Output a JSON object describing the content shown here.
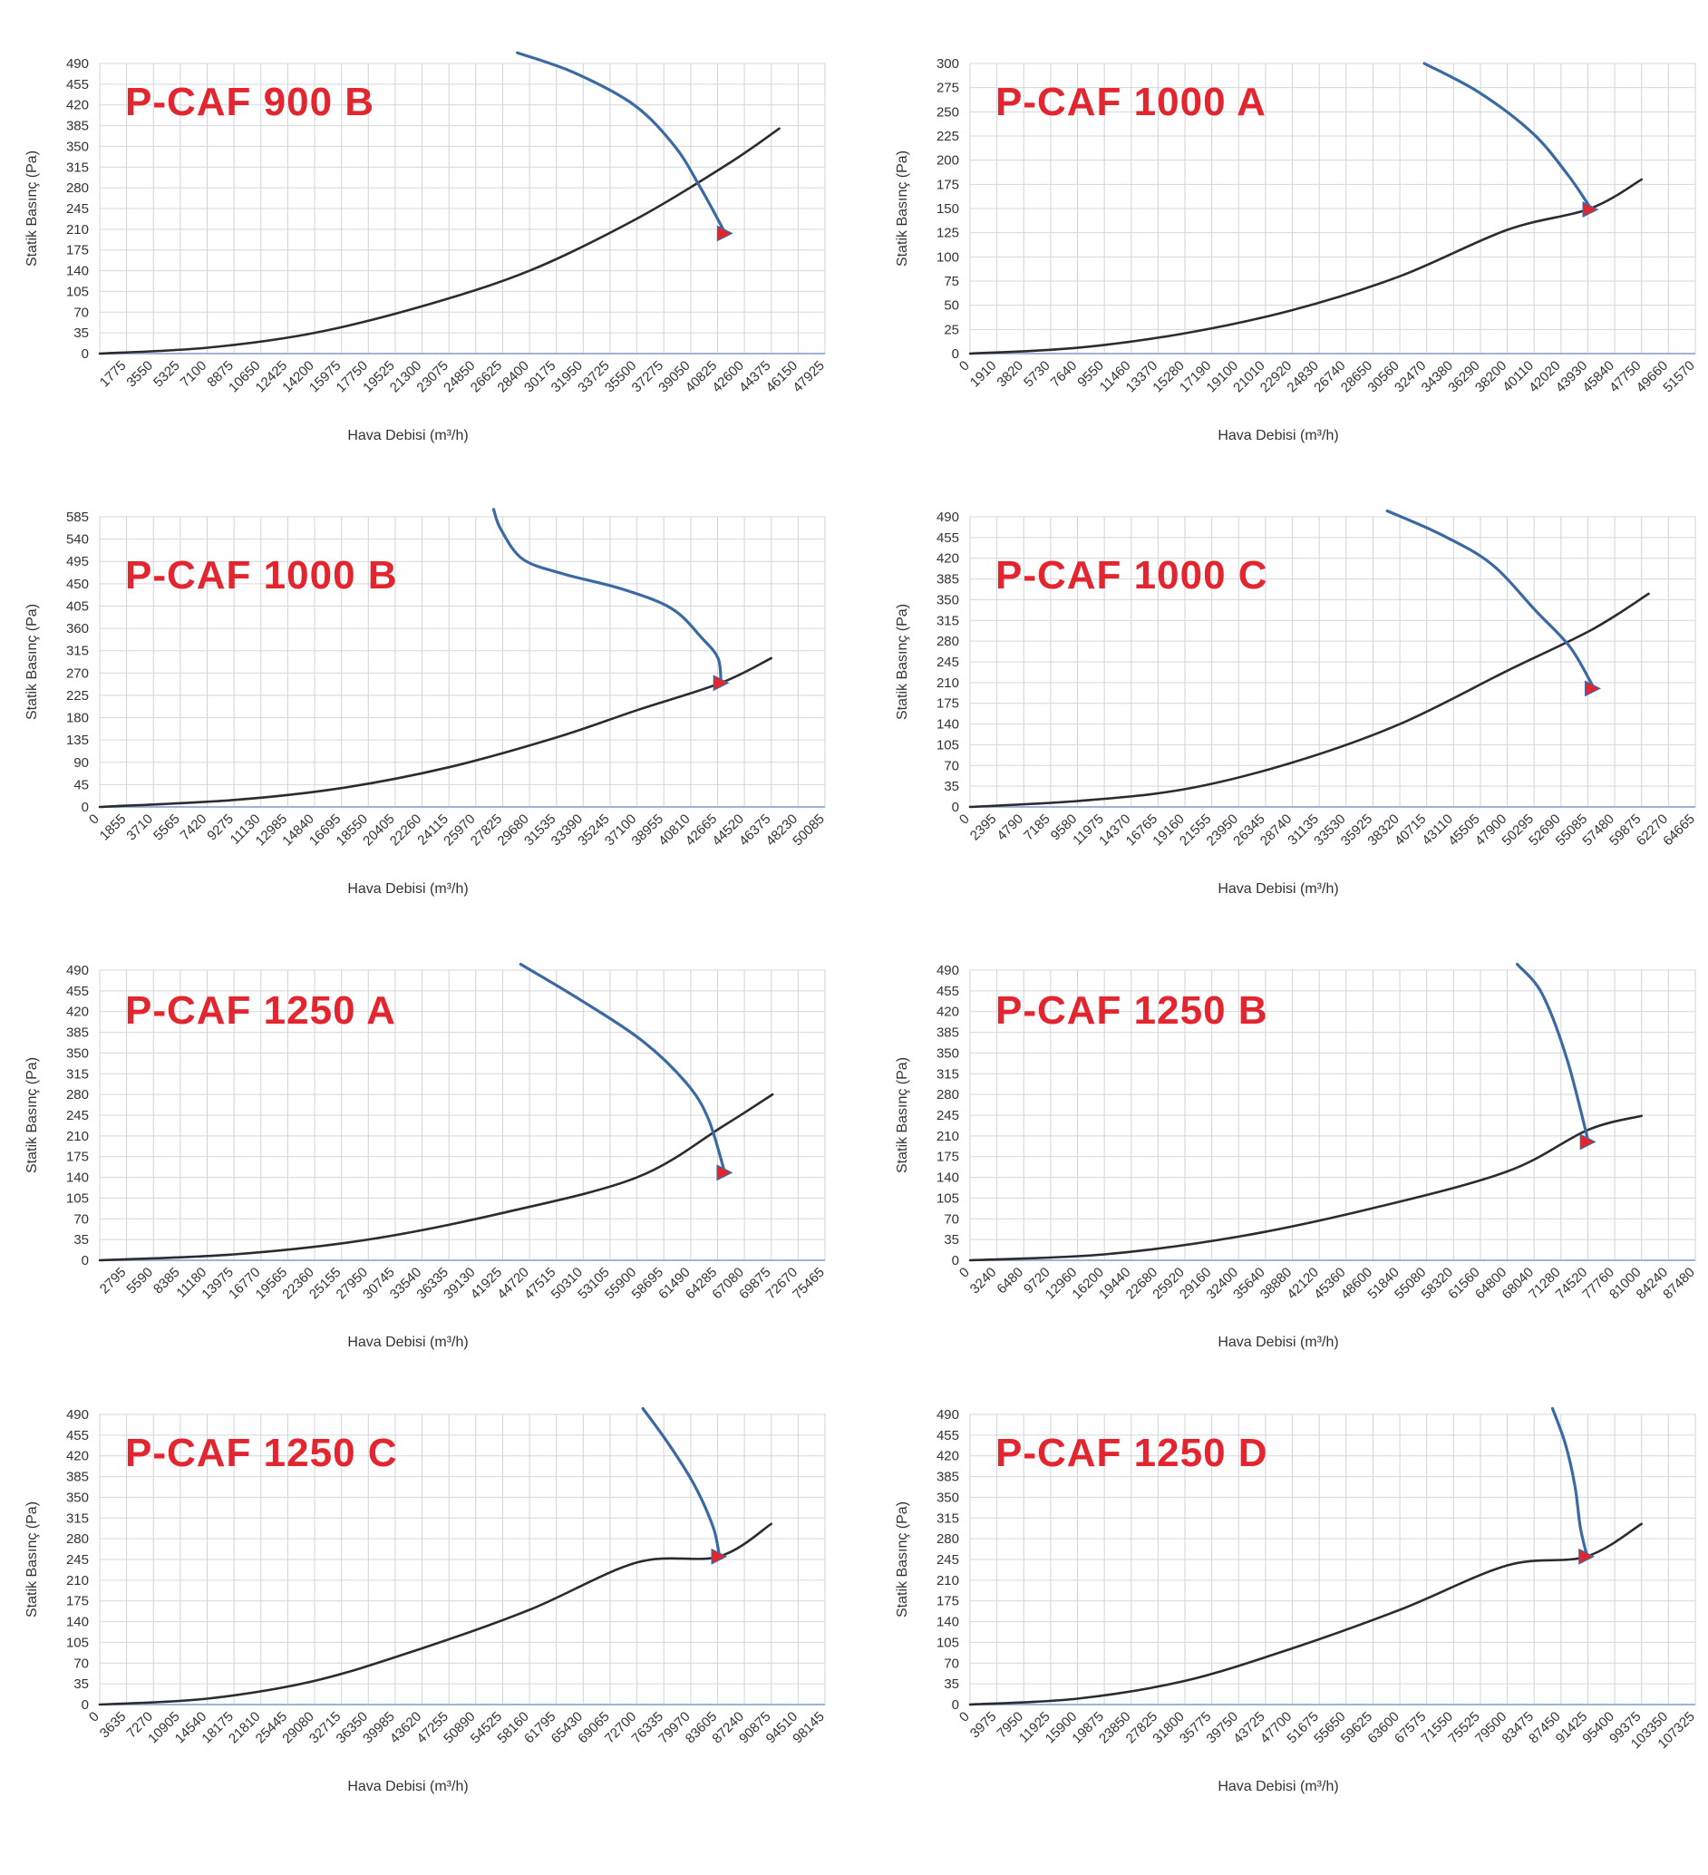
{
  "chart_data": [
    {
      "type": "line",
      "title": "P-CAF 900 B",
      "xlabel": "Hava Debisi (m³/h)",
      "ylabel": "Statik Basınç (Pa)",
      "x_ticks": [
        1775,
        3550,
        5325,
        7100,
        8875,
        10650,
        12425,
        14200,
        15975,
        17750,
        19525,
        21300,
        23075,
        24850,
        26625,
        28400,
        30175,
        31950,
        33725,
        35500,
        37275,
        39050,
        40825,
        42600,
        44375,
        46150,
        47925
      ],
      "y_ticks": [
        0,
        35,
        70,
        105,
        140,
        175,
        210,
        245,
        280,
        315,
        350,
        385,
        420,
        455,
        490
      ],
      "xlim": [
        0,
        47925
      ],
      "ylim": [
        0,
        490
      ],
      "grid": true,
      "series": [
        {
          "color": "#2b2b30",
          "points": [
            [
              0,
              0
            ],
            [
              7100,
              10
            ],
            [
              14200,
              35
            ],
            [
              21300,
              80
            ],
            [
              28400,
              140
            ],
            [
              35500,
              228
            ],
            [
              41500,
              320
            ],
            [
              44900,
              380
            ]
          ]
        },
        {
          "color": "#3b6aa3",
          "points": [
            [
              27600,
              508
            ],
            [
              31300,
              475
            ],
            [
              35300,
              420
            ],
            [
              38000,
              350
            ],
            [
              39700,
              280
            ],
            [
              41300,
              205
            ]
          ]
        }
      ],
      "markers": [
        {
          "x": 41300,
          "y": 203,
          "color": "#e2252f"
        }
      ]
    },
    {
      "type": "line",
      "title": "P-CAF 1000 A",
      "xlabel": "Hava Debisi (m³/h)",
      "ylabel": "Statik Basınç (Pa)",
      "x_ticks": [
        0,
        1910,
        3820,
        5730,
        7640,
        9550,
        11460,
        13370,
        15280,
        17190,
        19100,
        21010,
        22920,
        24830,
        26740,
        28650,
        30560,
        32470,
        34380,
        36290,
        38200,
        40110,
        42020,
        43930,
        45840,
        47750,
        49660,
        51570
      ],
      "y_ticks": [
        0,
        25,
        50,
        75,
        100,
        125,
        150,
        175,
        200,
        225,
        250,
        275,
        300
      ],
      "xlim": [
        0,
        51570
      ],
      "ylim": [
        0,
        300
      ],
      "grid": true,
      "series": [
        {
          "color": "#2b2b30",
          "points": [
            [
              0,
              0
            ],
            [
              7640,
              6
            ],
            [
              15280,
              21
            ],
            [
              22920,
              45
            ],
            [
              30560,
              80
            ],
            [
              38200,
              128
            ],
            [
              44100,
              150
            ],
            [
              47750,
              180
            ]
          ]
        },
        {
          "color": "#3b6aa3",
          "points": [
            [
              32300,
              300
            ],
            [
              36200,
              270
            ],
            [
              40000,
              228
            ],
            [
              42500,
              185
            ],
            [
              44100,
              151
            ]
          ]
        }
      ],
      "markers": [
        {
          "x": 44100,
          "y": 149,
          "color": "#e2252f"
        }
      ]
    },
    {
      "type": "line",
      "title": "P-CAF 1000 B",
      "xlabel": "Hava Debisi (m³/h)",
      "ylabel": "Statik Basınç (Pa)",
      "x_ticks": [
        0,
        1855,
        3710,
        5565,
        7420,
        9275,
        11130,
        12985,
        14840,
        16695,
        18550,
        20405,
        22260,
        24115,
        25970,
        27825,
        29680,
        31535,
        33390,
        35245,
        37100,
        38955,
        40810,
        42665,
        44520,
        46375,
        48230,
        50085
      ],
      "y_ticks": [
        0,
        45,
        90,
        135,
        180,
        225,
        270,
        315,
        360,
        405,
        450,
        495,
        540,
        585
      ],
      "xlim": [
        0,
        50085
      ],
      "ylim": [
        0,
        585
      ],
      "grid": true,
      "series": [
        {
          "color": "#2b2b30",
          "points": [
            [
              0,
              0
            ],
            [
              9275,
              14
            ],
            [
              16695,
              38
            ],
            [
              24115,
              80
            ],
            [
              31535,
              140
            ],
            [
              37100,
              195
            ],
            [
              42900,
              250
            ],
            [
              46375,
              300
            ]
          ]
        },
        {
          "color": "#3b6aa3",
          "points": [
            [
              27200,
              600
            ],
            [
              27700,
              560
            ],
            [
              29200,
              500
            ],
            [
              32000,
              470
            ],
            [
              36000,
              440
            ],
            [
              39500,
              400
            ],
            [
              41600,
              340
            ],
            [
              42700,
              300
            ],
            [
              42900,
              252
            ]
          ]
        }
      ],
      "markers": [
        {
          "x": 42900,
          "y": 250,
          "color": "#e2252f"
        }
      ]
    },
    {
      "type": "line",
      "title": "P-CAF 1000 C",
      "xlabel": "Hava Debisi (m³/h)",
      "ylabel": "Statik Basınç (Pa)",
      "x_ticks": [
        0,
        2395,
        4790,
        7185,
        9580,
        11975,
        14370,
        16765,
        19160,
        21555,
        23950,
        26345,
        28740,
        31135,
        33530,
        35925,
        38320,
        40715,
        43110,
        45505,
        47900,
        50295,
        52690,
        55085,
        57480,
        59875,
        62270,
        64665
      ],
      "y_ticks": [
        0,
        35,
        70,
        105,
        140,
        175,
        210,
        245,
        280,
        315,
        350,
        385,
        420,
        455,
        490
      ],
      "xlim": [
        0,
        64665
      ],
      "ylim": [
        0,
        490
      ],
      "grid": true,
      "series": [
        {
          "color": "#2b2b30",
          "points": [
            [
              0,
              0
            ],
            [
              9580,
              10
            ],
            [
              19160,
              30
            ],
            [
              28740,
              75
            ],
            [
              38320,
              140
            ],
            [
              47900,
              230
            ],
            [
              55500,
              300
            ],
            [
              60500,
              360
            ]
          ]
        },
        {
          "color": "#3b6aa3",
          "points": [
            [
              37200,
              500
            ],
            [
              42000,
              460
            ],
            [
              46500,
              410
            ],
            [
              50500,
              330
            ],
            [
              53500,
              270
            ],
            [
              55500,
              205
            ]
          ]
        }
      ],
      "markers": [
        {
          "x": 55500,
          "y": 200,
          "color": "#e2252f"
        }
      ]
    },
    {
      "type": "line",
      "title": "P-CAF 1250 A",
      "xlabel": "Hava Debisi (m³/h)",
      "ylabel": "Statik Basınç (Pa)",
      "x_ticks": [
        2795,
        5590,
        8385,
        11180,
        13975,
        16770,
        19565,
        22360,
        25155,
        27950,
        30745,
        33540,
        36335,
        39130,
        41925,
        44720,
        47515,
        50310,
        53105,
        55900,
        58695,
        61490,
        64285,
        67080,
        69875,
        72670,
        75465
      ],
      "y_ticks": [
        0,
        35,
        70,
        105,
        140,
        175,
        210,
        245,
        280,
        315,
        350,
        385,
        420,
        455,
        490
      ],
      "xlim": [
        0,
        75465
      ],
      "ylim": [
        0,
        490
      ],
      "grid": true,
      "series": [
        {
          "color": "#2b2b30",
          "points": [
            [
              0,
              0
            ],
            [
              13975,
              10
            ],
            [
              27950,
              35
            ],
            [
              41925,
              80
            ],
            [
              55900,
              140
            ],
            [
              65000,
              228
            ],
            [
              70000,
              280
            ]
          ]
        },
        {
          "color": "#3b6aa3",
          "points": [
            [
              43800,
              500
            ],
            [
              50000,
              440
            ],
            [
              56500,
              370
            ],
            [
              61000,
              300
            ],
            [
              63300,
              240
            ],
            [
              65000,
              150
            ]
          ]
        }
      ],
      "markers": [
        {
          "x": 65000,
          "y": 148,
          "color": "#e2252f"
        }
      ]
    },
    {
      "type": "line",
      "title": "P-CAF 1250 B",
      "xlabel": "Hava Debisi (m³/h)",
      "ylabel": "Statik Basınç (Pa)",
      "x_ticks": [
        0,
        3240,
        6480,
        9720,
        12960,
        16200,
        19440,
        22680,
        25920,
        29160,
        32400,
        35640,
        38880,
        42120,
        45360,
        48600,
        51840,
        55080,
        58320,
        61560,
        64800,
        68040,
        71280,
        74520,
        77760,
        81000,
        84240,
        87480
      ],
      "y_ticks": [
        0,
        35,
        70,
        105,
        140,
        175,
        210,
        245,
        280,
        315,
        350,
        385,
        420,
        455,
        490
      ],
      "xlim": [
        0,
        87480
      ],
      "ylim": [
        0,
        490
      ],
      "grid": true,
      "series": [
        {
          "color": "#2b2b30",
          "points": [
            [
              0,
              0
            ],
            [
              16200,
              10
            ],
            [
              32400,
              40
            ],
            [
              48600,
              88
            ],
            [
              64800,
              150
            ],
            [
              74500,
              220
            ],
            [
              81000,
              244
            ]
          ]
        },
        {
          "color": "#3b6aa3",
          "points": [
            [
              66000,
              500
            ],
            [
              69000,
              450
            ],
            [
              72000,
              340
            ],
            [
              74500,
              205
            ]
          ]
        }
      ],
      "markers": [
        {
          "x": 74500,
          "y": 200,
          "color": "#e2252f"
        }
      ]
    },
    {
      "type": "line",
      "title": "P-CAF 1250 C",
      "xlabel": "Hava Debisi (m³/h)",
      "ylabel": "Statik Basınç (Pa)",
      "x_ticks": [
        0,
        3635,
        7270,
        10905,
        14540,
        18175,
        21810,
        25445,
        29080,
        32715,
        36350,
        39985,
        43620,
        47255,
        50890,
        54525,
        58160,
        61795,
        65430,
        69065,
        72700,
        76335,
        79970,
        83605,
        87240,
        90875,
        94510,
        98145
      ],
      "y_ticks": [
        0,
        35,
        70,
        105,
        140,
        175,
        210,
        245,
        280,
        315,
        350,
        385,
        420,
        455,
        490
      ],
      "xlim": [
        0,
        98145
      ],
      "ylim": [
        0,
        490
      ],
      "grid": true,
      "series": [
        {
          "color": "#2b2b30",
          "points": [
            [
              0,
              0
            ],
            [
              14540,
              10
            ],
            [
              29080,
              40
            ],
            [
              43620,
              95
            ],
            [
              58160,
              160
            ],
            [
              72700,
              240
            ],
            [
              83800,
              250
            ],
            [
              90875,
              305
            ]
          ]
        },
        {
          "color": "#3b6aa3",
          "points": [
            [
              73500,
              500
            ],
            [
              77000,
              440
            ],
            [
              80500,
              370
            ],
            [
              83000,
              300
            ],
            [
              83800,
              255
            ]
          ]
        }
      ],
      "markers": [
        {
          "x": 83800,
          "y": 250,
          "color": "#e2252f"
        }
      ]
    },
    {
      "type": "line",
      "title": "P-CAF 1250 D",
      "xlabel": "Hava Debisi (m³/h)",
      "ylabel": "Statik Basınç (Pa)",
      "x_ticks": [
        0,
        3975,
        7950,
        11925,
        15900,
        19875,
        23850,
        27825,
        31800,
        35775,
        39750,
        43725,
        47700,
        51675,
        55650,
        59625,
        63600,
        67575,
        71550,
        75525,
        79500,
        83475,
        87450,
        91425,
        95400,
        99375,
        103350,
        107325
      ],
      "y_ticks": [
        0,
        35,
        70,
        105,
        140,
        175,
        210,
        245,
        280,
        315,
        350,
        385,
        420,
        455,
        490
      ],
      "xlim": [
        0,
        107325
      ],
      "ylim": [
        0,
        490
      ],
      "grid": true,
      "series": [
        {
          "color": "#2b2b30",
          "points": [
            [
              0,
              0
            ],
            [
              15900,
              10
            ],
            [
              31800,
              40
            ],
            [
              47700,
              95
            ],
            [
              63600,
              160
            ],
            [
              79500,
              235
            ],
            [
              91200,
              250
            ],
            [
              99375,
              305
            ]
          ]
        },
        {
          "color": "#3b6aa3",
          "points": [
            [
              86200,
              500
            ],
            [
              88100,
              440
            ],
            [
              89500,
              370
            ],
            [
              90300,
              300
            ],
            [
              91200,
              255
            ]
          ]
        }
      ],
      "markers": [
        {
          "x": 91200,
          "y": 250,
          "color": "#e2252f"
        }
      ]
    }
  ]
}
